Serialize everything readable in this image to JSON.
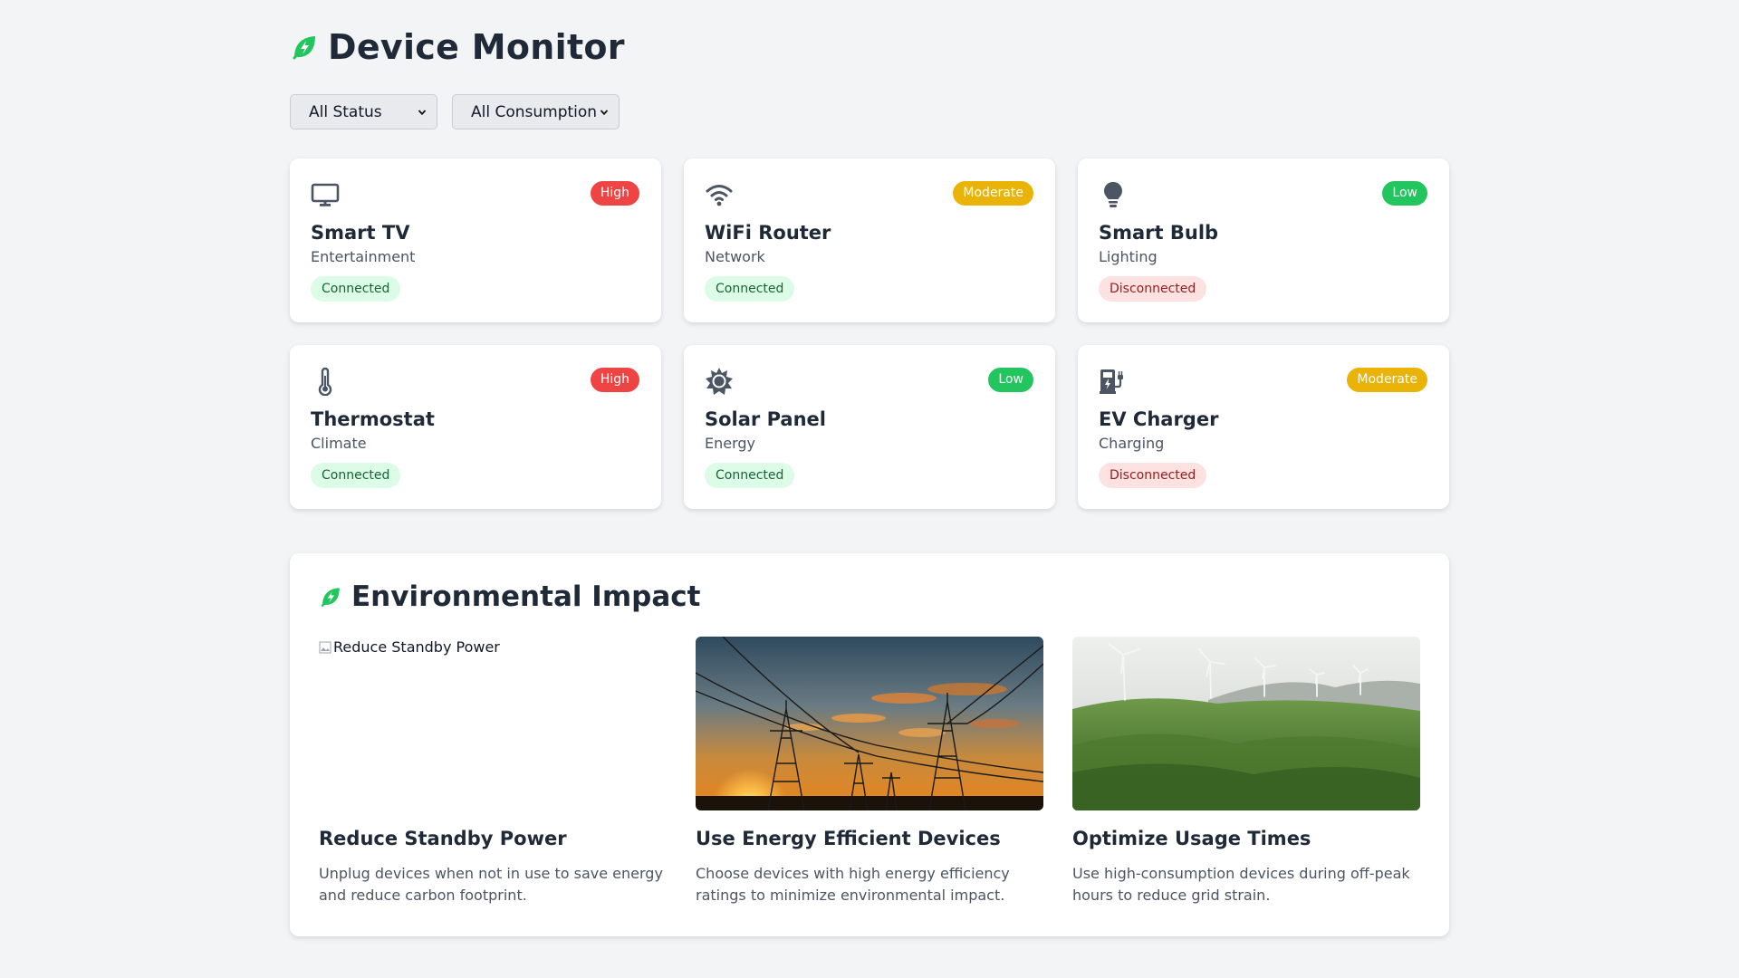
{
  "header": {
    "title": "Device Monitor",
    "logo_icon": "leaf-bolt-icon"
  },
  "filters": {
    "status": {
      "selected": "All Status"
    },
    "consumption": {
      "selected": "All Consumption"
    }
  },
  "devices": [
    {
      "name": "Smart TV",
      "category": "Entertainment",
      "consumption": "High",
      "status": "Connected",
      "icon": "monitor-icon"
    },
    {
      "name": "WiFi Router",
      "category": "Network",
      "consumption": "Moderate",
      "status": "Connected",
      "icon": "wifi-icon"
    },
    {
      "name": "Smart Bulb",
      "category": "Lighting",
      "consumption": "Low",
      "status": "Disconnected",
      "icon": "lightbulb-icon"
    },
    {
      "name": "Thermostat",
      "category": "Climate",
      "consumption": "High",
      "status": "Connected",
      "icon": "thermometer-icon"
    },
    {
      "name": "Solar Panel",
      "category": "Energy",
      "consumption": "Low",
      "status": "Connected",
      "icon": "sun-icon"
    },
    {
      "name": "EV Charger",
      "category": "Charging",
      "consumption": "Moderate",
      "status": "Disconnected",
      "icon": "ev-charger-icon"
    }
  ],
  "environment": {
    "title": "Environmental Impact",
    "tips": [
      {
        "title": "Reduce Standby Power",
        "description": "Unplug devices when not in use to save energy and reduce carbon footprint.",
        "image_alt": "Reduce Standby Power"
      },
      {
        "title": "Use Energy Efficient Devices",
        "description": "Choose devices with high energy efficiency ratings to minimize environmental impact.",
        "image_alt": "Use Energy Efficient Devices"
      },
      {
        "title": "Optimize Usage Times",
        "description": "Use high-consumption devices during off-peak hours to reduce grid strain.",
        "image_alt": "Optimize Usage Times"
      }
    ]
  },
  "colors": {
    "accent_green": "#22c55e",
    "high": "#ef4444",
    "moderate": "#eab308",
    "low": "#22c55e"
  }
}
